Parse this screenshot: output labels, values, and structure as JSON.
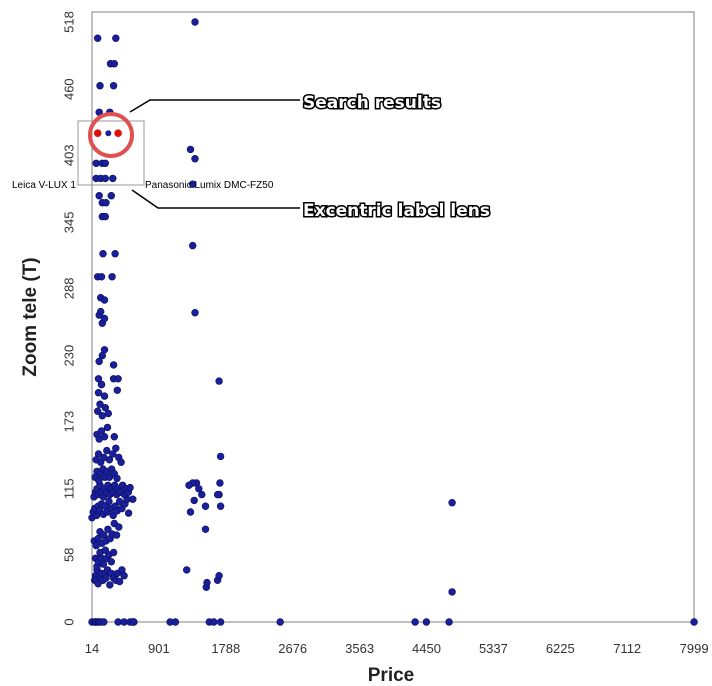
{
  "chart_data": {
    "type": "scatter",
    "xlabel": "Price",
    "ylabel": "Zoom tele  (T)",
    "xlim": [
      14,
      7999
    ],
    "ylim": [
      0,
      518
    ],
    "x_ticks": [
      "14",
      "901",
      "1788",
      "2676",
      "3563",
      "4450",
      "5337",
      "6225",
      "7112",
      "7999"
    ],
    "y_ticks": [
      "0",
      "58",
      "115",
      "173",
      "230",
      "288",
      "345",
      "403",
      "460",
      "518"
    ],
    "grid": false,
    "colors": {
      "point": "#1a1f9c",
      "highlight": "#e01010",
      "callout_circle": "#e05050",
      "lens_box": "#9a9a9a"
    },
    "points": [
      [
        14,
        0
      ],
      [
        14,
        90
      ],
      [
        50,
        0
      ],
      [
        60,
        0
      ],
      [
        70,
        0
      ],
      [
        100,
        0
      ],
      [
        110,
        0
      ],
      [
        130,
        0
      ],
      [
        170,
        0
      ],
      [
        360,
        0
      ],
      [
        440,
        0
      ],
      [
        520,
        0
      ],
      [
        560,
        0
      ],
      [
        570,
        0
      ],
      [
        560,
        0
      ],
      [
        1050,
        0
      ],
      [
        1120,
        0
      ],
      [
        1570,
        0
      ],
      [
        1630,
        0
      ],
      [
        1720,
        0
      ],
      [
        2510,
        0
      ],
      [
        4300,
        0
      ],
      [
        4450,
        0
      ],
      [
        4750,
        0
      ],
      [
        8000,
        0
      ],
      [
        50,
        36
      ],
      [
        60,
        40
      ],
      [
        70,
        36
      ],
      [
        80,
        45
      ],
      [
        95,
        33
      ],
      [
        110,
        40
      ],
      [
        125,
        38
      ],
      [
        140,
        42
      ],
      [
        160,
        36
      ],
      [
        180,
        42
      ],
      [
        200,
        38
      ],
      [
        220,
        45
      ],
      [
        250,
        32
      ],
      [
        270,
        42
      ],
      [
        300,
        38
      ],
      [
        330,
        36
      ],
      [
        350,
        42
      ],
      [
        380,
        35
      ],
      [
        410,
        45
      ],
      [
        440,
        40
      ],
      [
        60,
        55
      ],
      [
        80,
        48
      ],
      [
        100,
        52
      ],
      [
        120,
        60
      ],
      [
        140,
        55
      ],
      [
        165,
        50
      ],
      [
        190,
        62
      ],
      [
        210,
        55
      ],
      [
        240,
        58
      ],
      [
        270,
        52
      ],
      [
        300,
        60
      ],
      [
        45,
        70
      ],
      [
        70,
        66
      ],
      [
        95,
        72
      ],
      [
        120,
        78
      ],
      [
        145,
        68
      ],
      [
        170,
        75
      ],
      [
        200,
        70
      ],
      [
        225,
        80
      ],
      [
        255,
        72
      ],
      [
        280,
        76
      ],
      [
        310,
        85
      ],
      [
        340,
        75
      ],
      [
        370,
        82
      ],
      [
        30,
        95
      ],
      [
        50,
        98
      ],
      [
        75,
        92
      ],
      [
        95,
        100
      ],
      [
        115,
        96
      ],
      [
        140,
        102
      ],
      [
        165,
        93
      ],
      [
        190,
        100
      ],
      [
        215,
        95
      ],
      [
        240,
        104
      ],
      [
        270,
        98
      ],
      [
        295,
        92
      ],
      [
        320,
        100
      ],
      [
        350,
        96
      ],
      [
        380,
        104
      ],
      [
        410,
        98
      ],
      [
        450,
        102
      ],
      [
        480,
        106
      ],
      [
        500,
        94
      ],
      [
        40,
        108
      ],
      [
        60,
        112
      ],
      [
        80,
        115
      ],
      [
        100,
        110
      ],
      [
        120,
        118
      ],
      [
        140,
        112
      ],
      [
        165,
        108
      ],
      [
        185,
        115
      ],
      [
        205,
        112
      ],
      [
        225,
        118
      ],
      [
        250,
        110
      ],
      [
        270,
        115
      ],
      [
        295,
        112
      ],
      [
        315,
        118
      ],
      [
        340,
        110
      ],
      [
        360,
        115
      ],
      [
        390,
        112
      ],
      [
        420,
        118
      ],
      [
        445,
        110
      ],
      [
        470,
        115
      ],
      [
        495,
        112
      ],
      [
        520,
        116
      ],
      [
        555,
        106
      ],
      [
        55,
        125
      ],
      [
        80,
        130
      ],
      [
        105,
        122
      ],
      [
        130,
        128
      ],
      [
        160,
        132
      ],
      [
        185,
        125
      ],
      [
        215,
        130
      ],
      [
        245,
        125
      ],
      [
        275,
        132
      ],
      [
        310,
        128
      ],
      [
        345,
        124
      ],
      [
        70,
        140
      ],
      [
        100,
        145
      ],
      [
        130,
        138
      ],
      [
        170,
        142
      ],
      [
        210,
        148
      ],
      [
        245,
        140
      ],
      [
        290,
        145
      ],
      [
        330,
        150
      ],
      [
        370,
        142
      ],
      [
        400,
        138
      ],
      [
        80,
        162
      ],
      [
        110,
        158
      ],
      [
        140,
        165
      ],
      [
        180,
        160
      ],
      [
        220,
        168
      ],
      [
        310,
        160
      ],
      [
        90,
        182
      ],
      [
        120,
        188
      ],
      [
        150,
        178
      ],
      [
        190,
        185
      ],
      [
        230,
        180
      ],
      [
        100,
        198
      ],
      [
        140,
        205
      ],
      [
        180,
        195
      ],
      [
        350,
        200
      ],
      [
        100,
        210
      ],
      [
        140,
        205
      ],
      [
        300,
        210
      ],
      [
        360,
        210
      ],
      [
        110,
        225
      ],
      [
        150,
        230
      ],
      [
        180,
        235
      ],
      [
        300,
        222
      ],
      [
        110,
        265
      ],
      [
        130,
        268
      ],
      [
        150,
        258
      ],
      [
        180,
        262
      ],
      [
        130,
        280
      ],
      [
        180,
        278
      ],
      [
        90,
        298
      ],
      [
        140,
        298
      ],
      [
        280,
        298
      ],
      [
        160,
        318
      ],
      [
        320,
        318
      ],
      [
        150,
        350
      ],
      [
        190,
        350
      ],
      [
        110,
        368
      ],
      [
        150,
        362
      ],
      [
        200,
        362
      ],
      [
        270,
        368
      ],
      [
        70,
        383
      ],
      [
        130,
        383
      ],
      [
        190,
        383
      ],
      [
        290,
        383
      ],
      [
        70,
        396
      ],
      [
        150,
        396
      ],
      [
        190,
        396
      ],
      [
        110,
        440
      ],
      [
        250,
        440
      ],
      [
        120,
        463
      ],
      [
        300,
        463
      ],
      [
        260,
        482
      ],
      [
        310,
        482
      ],
      [
        90,
        504
      ],
      [
        330,
        504
      ],
      [
        1380,
        518
      ],
      [
        1320,
        408
      ],
      [
        1380,
        400
      ],
      [
        1350,
        378
      ],
      [
        1350,
        325
      ],
      [
        1380,
        267
      ],
      [
        1700,
        208
      ],
      [
        1720,
        143
      ],
      [
        1710,
        120
      ],
      [
        1700,
        110
      ],
      [
        1720,
        100
      ],
      [
        1680,
        110
      ],
      [
        1320,
        95
      ],
      [
        1370,
        105
      ],
      [
        1400,
        120
      ],
      [
        1430,
        115
      ],
      [
        1470,
        110
      ],
      [
        1520,
        100
      ],
      [
        1520,
        80
      ],
      [
        1350,
        120
      ],
      [
        1300,
        118
      ],
      [
        1270,
        45
      ],
      [
        1530,
        30
      ],
      [
        1540,
        34
      ],
      [
        1680,
        36
      ],
      [
        1700,
        40
      ],
      [
        4790,
        103
      ],
      [
        4790,
        26
      ]
    ],
    "highlighted_points": [
      [
        90,
        422
      ],
      [
        360,
        422
      ]
    ],
    "lens_labels": [
      "Leica V-LUX 1",
      "Panasonic Lumix DMC-FZ50"
    ],
    "annotations": [
      "Search results",
      "Excentric label lens"
    ]
  }
}
